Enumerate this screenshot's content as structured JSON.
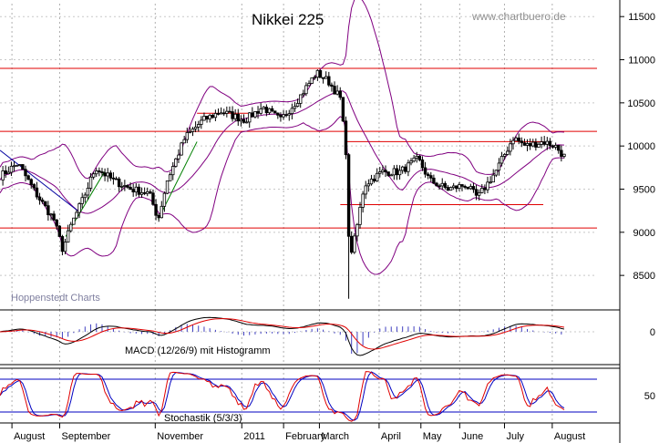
{
  "chart_data": {
    "type": "candlestick",
    "title": "Nikkei 225",
    "watermark": "www.chartbuero.de",
    "source_label": "Hoppenstedt Charts",
    "price_panel": {
      "ylim": [
        8100,
        11650
      ],
      "y_ticks": [
        8500,
        9000,
        9500,
        10000,
        10500,
        11000,
        11500
      ],
      "y_tick_labels": [
        "8500",
        "9000",
        "9500",
        "10000",
        "10500",
        "11000",
        "11500"
      ],
      "horizontal_levels": [
        10900,
        10170,
        9050
      ],
      "short_levels": [
        {
          "value": 10380,
          "from": 0.33,
          "to": 0.42
        },
        {
          "value": 10050,
          "from": 0.58,
          "to": 0.91
        },
        {
          "value": 9320,
          "from": 0.57,
          "to": 0.91
        }
      ],
      "anchors_close": [
        [
          0.0,
          9650
        ],
        [
          0.03,
          9800
        ],
        [
          0.06,
          9450
        ],
        [
          0.09,
          9150
        ],
        [
          0.105,
          8800
        ],
        [
          0.12,
          9100
        ],
        [
          0.14,
          9400
        ],
        [
          0.16,
          9750
        ],
        [
          0.19,
          9600
        ],
        [
          0.22,
          9500
        ],
        [
          0.25,
          9450
        ],
        [
          0.265,
          9150
        ],
        [
          0.28,
          9600
        ],
        [
          0.31,
          10100
        ],
        [
          0.34,
          10300
        ],
        [
          0.37,
          10400
        ],
        [
          0.41,
          10300
        ],
        [
          0.44,
          10450
        ],
        [
          0.47,
          10300
        ],
        [
          0.5,
          10550
        ],
        [
          0.53,
          10850
        ],
        [
          0.55,
          10750
        ],
        [
          0.57,
          10550
        ],
        [
          0.58,
          9900
        ],
        [
          0.585,
          8700
        ],
        [
          0.595,
          8950
        ],
        [
          0.61,
          9550
        ],
        [
          0.64,
          9700
        ],
        [
          0.67,
          9700
        ],
        [
          0.7,
          9850
        ],
        [
          0.72,
          9600
        ],
        [
          0.75,
          9500
        ],
        [
          0.78,
          9550
        ],
        [
          0.8,
          9400
        ],
        [
          0.83,
          9700
        ],
        [
          0.86,
          10100
        ],
        [
          0.88,
          10000
        ],
        [
          0.91,
          10050
        ],
        [
          0.93,
          10000
        ],
        [
          0.945,
          9880
        ]
      ],
      "spike_low": {
        "at": 0.585,
        "value": 8230
      }
    },
    "macd_panel": {
      "label": "MACD (12/26/9) mit Histogramm",
      "y_tick_labels": [
        "0"
      ]
    },
    "stochastic_panel": {
      "label": "Stochastik (5/3/3)",
      "y_tick_labels": [
        "50"
      ],
      "levels": [
        80,
        20
      ]
    },
    "x_tick_labels": [
      "August",
      "September",
      "November",
      "2011",
      "February",
      "March",
      "April",
      "May",
      "June",
      "July",
      "August"
    ],
    "x_tick_positions": [
      0.02,
      0.1,
      0.26,
      0.405,
      0.475,
      0.535,
      0.635,
      0.705,
      0.77,
      0.845,
      0.925
    ],
    "colors": {
      "candles": "#000000",
      "bollinger": "#800080",
      "levels": "#e00000",
      "trendline_green": "#008000",
      "trendline_blue": "#0000a0",
      "macd": "#000000",
      "macd_signal": "#e00000",
      "histogram": "#4040c0",
      "stoch_k": "#e00000",
      "stoch_d": "#0000c0",
      "stoch_levels": "#0000c0"
    }
  }
}
